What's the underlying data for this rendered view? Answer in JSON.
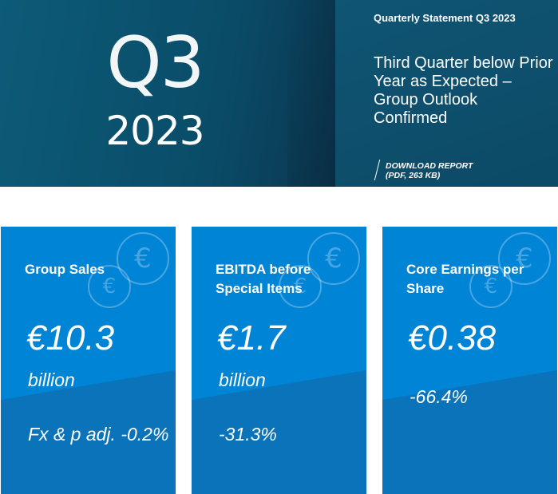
{
  "hero": {
    "quarter": "Q3",
    "year": "2023",
    "statement_title": "Quarterly Statement Q3 2023",
    "headline": "Third Quarter below Prior Year as Expected – Group Outlook Confirmed",
    "download_label": "Download Report",
    "download_meta": "(PDF, 263 KB)"
  },
  "icons": {
    "coin": "euro-coin-icon",
    "coin_glyph": "€"
  },
  "cards": [
    {
      "title": "Group Sales",
      "value": "€10.3",
      "unit": "billion",
      "change": "Fx & p adj. -0.2%"
    },
    {
      "title": "EBITDA before Special Items",
      "value": "€1.7",
      "unit": "billion",
      "change": "-31.3%"
    },
    {
      "title": "Core Earnings per Share",
      "value": "€0.38",
      "unit": "",
      "change": "-66.4%"
    }
  ],
  "colors": {
    "hero_dark": "#0b3650",
    "card_blue": "#0084d6",
    "card_lower": "#0a73b9"
  }
}
